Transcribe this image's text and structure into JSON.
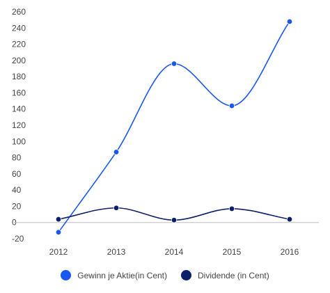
{
  "chart_data": {
    "type": "line",
    "title": "",
    "xlabel": "",
    "ylabel": "",
    "categories": [
      "2012",
      "2013",
      "2014",
      "2015",
      "2016"
    ],
    "ylim": [
      -20,
      260
    ],
    "y_ticks": [
      -20,
      0,
      20,
      40,
      60,
      80,
      100,
      120,
      140,
      160,
      180,
      200,
      220,
      240,
      260
    ],
    "grid": false,
    "legend_position": "bottom",
    "smooth": true,
    "series": [
      {
        "name": "Gewinn je Aktie(in Cent)",
        "values": [
          -12,
          87,
          196,
          144,
          248
        ],
        "color": "#1a56f0"
      },
      {
        "name": "Dividende (in Cent)",
        "values": [
          4,
          18,
          3,
          17,
          4
        ],
        "color": "#0d1f6b"
      }
    ]
  }
}
